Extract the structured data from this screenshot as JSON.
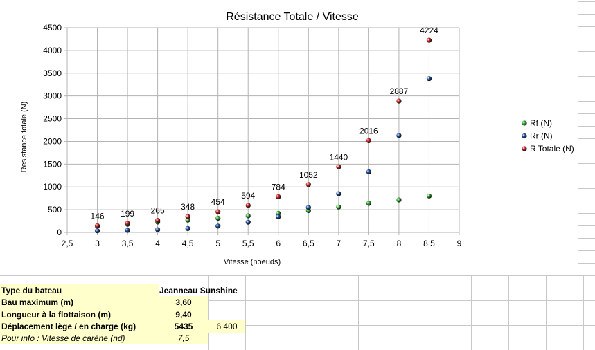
{
  "chart_data": {
    "type": "scatter",
    "title": "Résistance Totale / Vitesse",
    "xlabel": "Vitesse (noeuds)",
    "ylabel": "Résistance totale (N)",
    "xlim": [
      2.5,
      9
    ],
    "ylim": [
      0,
      4500
    ],
    "x_ticks": [
      "2,5",
      "3",
      "3,5",
      "4",
      "4,5",
      "5",
      "5,5",
      "6",
      "6,5",
      "7",
      "7,5",
      "8",
      "8,5",
      "9"
    ],
    "y_ticks": [
      "0",
      "500",
      "1000",
      "1500",
      "2000",
      "2500",
      "3000",
      "3500",
      "4000",
      "4500"
    ],
    "grid": true,
    "legend_position": "right",
    "x": [
      3,
      3.5,
      4,
      4.5,
      5,
      5.5,
      6,
      6.5,
      7,
      7.5,
      8,
      8.5
    ],
    "series": [
      {
        "name": "Rf (N)",
        "color": "#33aa33",
        "values": [
          138,
          180,
          228,
          270,
          312,
          365,
          420,
          480,
          560,
          640,
          715,
          800
        ]
      },
      {
        "name": "Rr (N)",
        "color": "#1f4e9f",
        "values": [
          35,
          45,
          60,
          85,
          140,
          225,
          345,
          550,
          850,
          1330,
          2130,
          3380
        ]
      },
      {
        "name": "R Totale (N)",
        "color": "#cc2222",
        "values": [
          146,
          199,
          265,
          348,
          454,
          594,
          784,
          1052,
          1440,
          2016,
          2887,
          4224
        ],
        "labels": [
          "146",
          "199",
          "265",
          "348",
          "454",
          "594",
          "784",
          "1052",
          "1440",
          "2016",
          "2887",
          "4224"
        ]
      }
    ]
  },
  "table": {
    "rows": [
      {
        "label": "Type du bateau",
        "value": "Jeanneau Sunshine",
        "value2": ""
      },
      {
        "label": "Bau maximum (m)",
        "value": "3,60",
        "value2": ""
      },
      {
        "label": "Longueur à la flottaison (m)",
        "value": "9,40",
        "value2": ""
      },
      {
        "label": "Déplacement lège / en charge (kg)",
        "value": "5435",
        "value2": "6 400"
      },
      {
        "label": "Pour info : Vitesse de carène (nd)",
        "value": "7,5",
        "value2": ""
      }
    ]
  }
}
